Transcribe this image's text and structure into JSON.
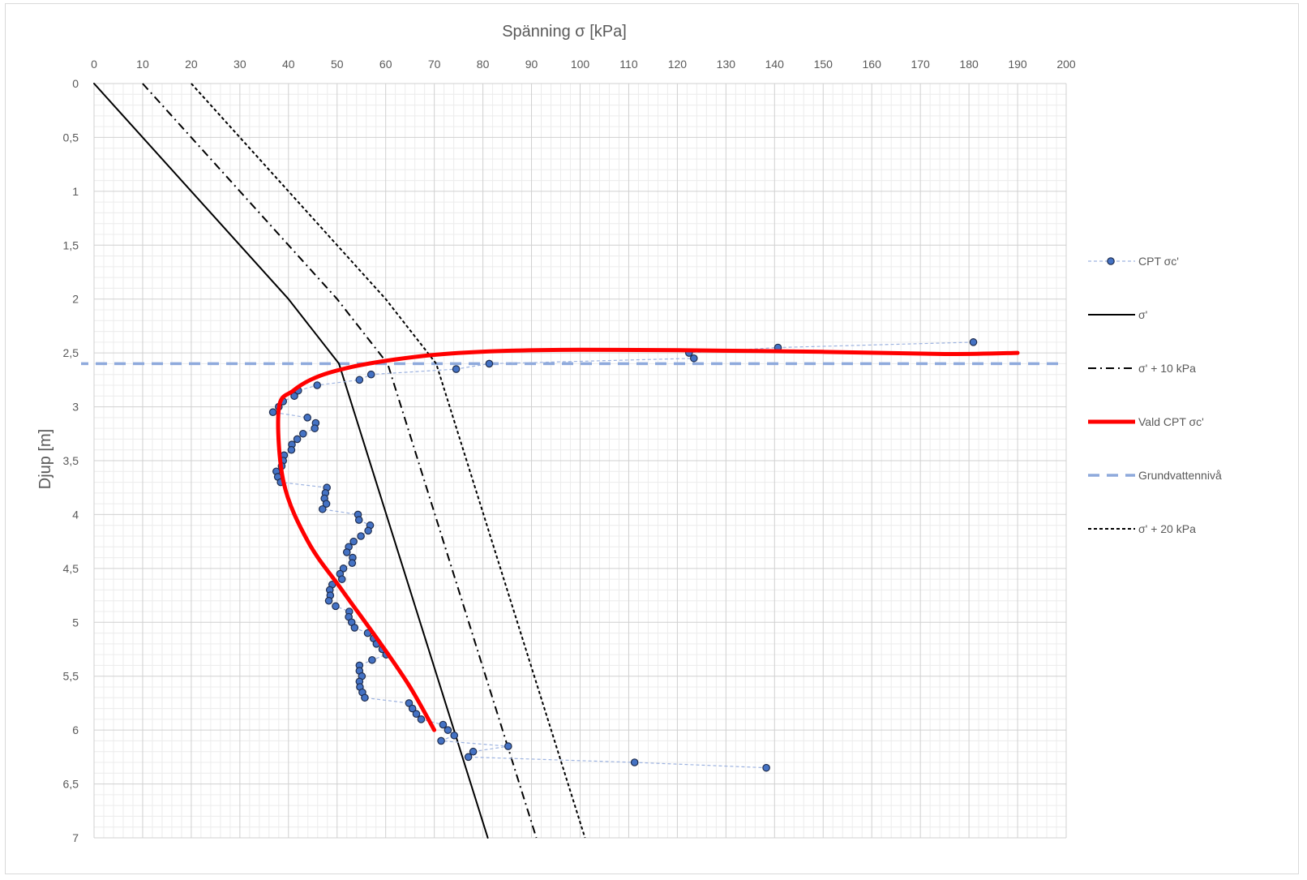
{
  "chart_data": {
    "type": "scatter",
    "title": "",
    "xlabel": "Spänning σ [kPa]",
    "ylabel": "Djup [m]",
    "xlim": [
      0,
      200
    ],
    "ylim": [
      0,
      7
    ],
    "y_inverted": true,
    "x_axis_position": "top",
    "grid": true,
    "minor_grid": true,
    "legend_position": "right",
    "x_ticks": [
      "0",
      "10",
      "20",
      "30",
      "40",
      "50",
      "60",
      "70",
      "80",
      "90",
      "100",
      "110",
      "120",
      "130",
      "140",
      "150",
      "160",
      "170",
      "180",
      "190",
      "200"
    ],
    "y_ticks": [
      "0",
      "0,5",
      "1",
      "1,5",
      "2",
      "2,5",
      "3",
      "3,5",
      "4",
      "4,5",
      "5",
      "5,5",
      "6",
      "6,5",
      "7"
    ],
    "series": [
      {
        "name": "CPT σc'",
        "color": "#4472c4",
        "style": "dashed-markers",
        "points": [
          [
            180.9,
            2.4
          ],
          [
            140.7,
            2.45
          ],
          [
            122.4,
            2.5
          ],
          [
            123.4,
            2.55
          ],
          [
            81.3,
            2.6
          ],
          [
            74.5,
            2.65
          ],
          [
            57.0,
            2.7
          ],
          [
            54.6,
            2.75
          ],
          [
            45.9,
            2.8
          ],
          [
            42.0,
            2.85
          ],
          [
            41.2,
            2.9
          ],
          [
            38.9,
            2.95
          ],
          [
            38.0,
            3.0
          ],
          [
            36.8,
            3.05
          ],
          [
            43.9,
            3.1
          ],
          [
            45.6,
            3.15
          ],
          [
            45.4,
            3.2
          ],
          [
            43.0,
            3.25
          ],
          [
            41.8,
            3.3
          ],
          [
            40.7,
            3.35
          ],
          [
            40.6,
            3.4
          ],
          [
            39.1,
            3.45
          ],
          [
            38.9,
            3.5
          ],
          [
            38.6,
            3.55
          ],
          [
            37.5,
            3.6
          ],
          [
            37.8,
            3.65
          ],
          [
            38.4,
            3.7
          ],
          [
            47.9,
            3.75
          ],
          [
            47.6,
            3.8
          ],
          [
            47.4,
            3.85
          ],
          [
            47.8,
            3.9
          ],
          [
            47.0,
            3.95
          ],
          [
            54.3,
            4.0
          ],
          [
            54.5,
            4.05
          ],
          [
            56.8,
            4.1
          ],
          [
            56.4,
            4.15
          ],
          [
            54.9,
            4.2
          ],
          [
            53.4,
            4.25
          ],
          [
            52.4,
            4.3
          ],
          [
            52.0,
            4.35
          ],
          [
            53.2,
            4.4
          ],
          [
            53.1,
            4.45
          ],
          [
            51.3,
            4.5
          ],
          [
            50.6,
            4.55
          ],
          [
            51.0,
            4.6
          ],
          [
            49.0,
            4.65
          ],
          [
            48.5,
            4.7
          ],
          [
            48.6,
            4.75
          ],
          [
            48.3,
            4.8
          ],
          [
            49.7,
            4.85
          ],
          [
            52.5,
            4.9
          ],
          [
            52.4,
            4.95
          ],
          [
            53.0,
            5.0
          ],
          [
            53.6,
            5.05
          ],
          [
            56.3,
            5.1
          ],
          [
            57.5,
            5.15
          ],
          [
            58.1,
            5.2
          ],
          [
            59.3,
            5.25
          ],
          [
            60.1,
            5.3
          ],
          [
            57.2,
            5.35
          ],
          [
            54.6,
            5.4
          ],
          [
            54.6,
            5.45
          ],
          [
            55.1,
            5.5
          ],
          [
            54.6,
            5.55
          ],
          [
            54.7,
            5.6
          ],
          [
            55.2,
            5.65
          ],
          [
            55.7,
            5.7
          ],
          [
            64.8,
            5.75
          ],
          [
            65.5,
            5.8
          ],
          [
            66.3,
            5.85
          ],
          [
            67.3,
            5.9
          ],
          [
            71.8,
            5.95
          ],
          [
            72.8,
            6.0
          ],
          [
            74.1,
            6.05
          ],
          [
            71.4,
            6.1
          ],
          [
            85.2,
            6.15
          ],
          [
            78.0,
            6.2
          ],
          [
            77.0,
            6.25
          ],
          [
            111.2,
            6.3
          ],
          [
            138.3,
            6.35
          ]
        ]
      },
      {
        "name": "σ'",
        "color": "#000000",
        "style": "solid",
        "points": [
          [
            0,
            0
          ],
          [
            40,
            2
          ],
          [
            50.4,
            2.6
          ],
          [
            81,
            7
          ]
        ]
      },
      {
        "name": "σ' + 10 kPa",
        "color": "#000000",
        "style": "dashdot",
        "points": [
          [
            10,
            0
          ],
          [
            50,
            2
          ],
          [
            60.4,
            2.6
          ],
          [
            91,
            7
          ]
        ]
      },
      {
        "name": "Vald CPT σc'",
        "color": "#ff0000",
        "style": "thick-smooth",
        "points": [
          [
            190,
            2.5
          ],
          [
            175,
            2.51
          ],
          [
            150,
            2.49
          ],
          [
            120,
            2.475
          ],
          [
            100,
            2.47
          ],
          [
            85,
            2.48
          ],
          [
            72,
            2.51
          ],
          [
            62,
            2.56
          ],
          [
            53,
            2.63
          ],
          [
            46,
            2.72
          ],
          [
            41,
            2.85
          ],
          [
            38,
            3.02
          ],
          [
            39,
            3.7
          ],
          [
            44,
            4.25
          ],
          [
            51,
            4.7
          ],
          [
            59,
            5.2
          ],
          [
            65,
            5.6
          ],
          [
            70,
            6.0
          ]
        ]
      },
      {
        "name": "Grundvattennivå",
        "color": "#8faadc",
        "style": "long-dash",
        "points": [
          [
            -3.5,
            2.6
          ],
          [
            199,
            2.6
          ]
        ]
      },
      {
        "name": "σ' + 20 kPa",
        "color": "#000000",
        "style": "short-dash",
        "points": [
          [
            20,
            0
          ],
          [
            60,
            2
          ],
          [
            70.4,
            2.6
          ],
          [
            101,
            7
          ]
        ]
      }
    ]
  }
}
